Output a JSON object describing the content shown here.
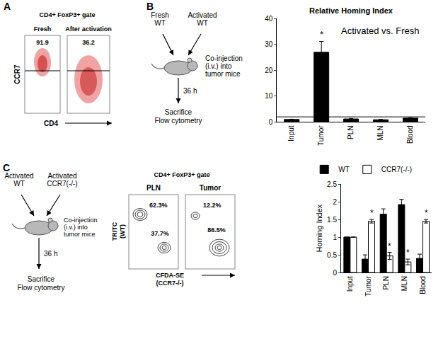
{
  "panels": {
    "A": {
      "letter": "A",
      "gate": "CD4+ FoxP3+ gate",
      "columns": [
        "Fresh",
        "After activation"
      ],
      "percentages": [
        "91.9",
        "36.2"
      ],
      "y_label": "CCR7",
      "x_label": "CD4"
    },
    "B_diagram": {
      "letter": "B",
      "donors": [
        [
          "Fresh",
          "WT"
        ],
        [
          "Activated",
          "WT"
        ]
      ],
      "injection": [
        "Co-injection",
        "(i.v.) into",
        "tumor mice"
      ],
      "time": "36 h",
      "readout": [
        "Sacrifice",
        "Flow cytometry"
      ]
    },
    "C_diagram": {
      "letter": "C",
      "donors": [
        [
          "Activated",
          "WT"
        ],
        [
          "Activated",
          "CCR7(-/-)"
        ]
      ],
      "injection": [
        "Co-injection",
        "(i.v.) into",
        "tumor mice"
      ],
      "time": "36 h",
      "readout": [
        "Sacrifice",
        "Flow cytometry"
      ]
    },
    "C_flow": {
      "gate": "CD4+ FoxP3+ gate",
      "plots": [
        {
          "title": "PLN",
          "wt": "62.3%",
          "ko": "37.7%"
        },
        {
          "title": "Tumor",
          "wt": "12.2%",
          "ko": "86.5%"
        }
      ],
      "y_label": [
        "TRITC",
        "(WT)"
      ],
      "x_label": [
        "CFDA-SE",
        "(CCR7-/-)"
      ]
    }
  },
  "chart_data": [
    {
      "type": "bar",
      "title": "Relative Homing Index",
      "categories": [
        "Input",
        "Tumor",
        "PLN",
        "MLN",
        "Blood"
      ],
      "values": [
        1,
        27,
        1.2,
        0.9,
        1.5
      ],
      "errors": [
        0.1,
        4.2,
        0.2,
        0.1,
        0.2
      ],
      "color": "#000000",
      "ylim": [
        0,
        40
      ],
      "yticks": [
        0,
        10,
        20,
        30,
        40
      ],
      "reference_line": 2,
      "annotations": [
        {
          "text": "Activated vs. Fresh"
        }
      ],
      "significance": [
        {
          "category": "Tumor",
          "text": "*"
        }
      ]
    },
    {
      "type": "bar",
      "y_label": "Homing Index",
      "categories": [
        "Input",
        "Tumor",
        "PLN",
        "MLN",
        "Blood"
      ],
      "series": [
        {
          "name": "WT",
          "color": "#000000",
          "values": [
            1,
            0.38,
            1.65,
            1.92,
            0.4
          ],
          "errors": [
            0,
            0.12,
            0.15,
            0.15,
            0.12
          ]
        },
        {
          "name": "CCR7(-/-)",
          "color": "#ffffff",
          "values": [
            1,
            1.45,
            0.47,
            0.3,
            1.45
          ],
          "errors": [
            0,
            0.05,
            0.1,
            0.08,
            0.05
          ]
        }
      ],
      "ylim": [
        0,
        2.5
      ],
      "yticks": [
        0,
        0.5,
        1,
        1.5,
        2,
        2.5
      ],
      "legend": "top",
      "significance": [
        {
          "category": "Tumor",
          "series": "CCR7(-/-)",
          "text": "*"
        },
        {
          "category": "PLN",
          "series": "CCR7(-/-)",
          "text": "*"
        },
        {
          "category": "MLN",
          "series": "CCR7(-/-)",
          "text": "*"
        },
        {
          "category": "Blood",
          "series": "CCR7(-/-)",
          "text": "*"
        }
      ]
    }
  ]
}
